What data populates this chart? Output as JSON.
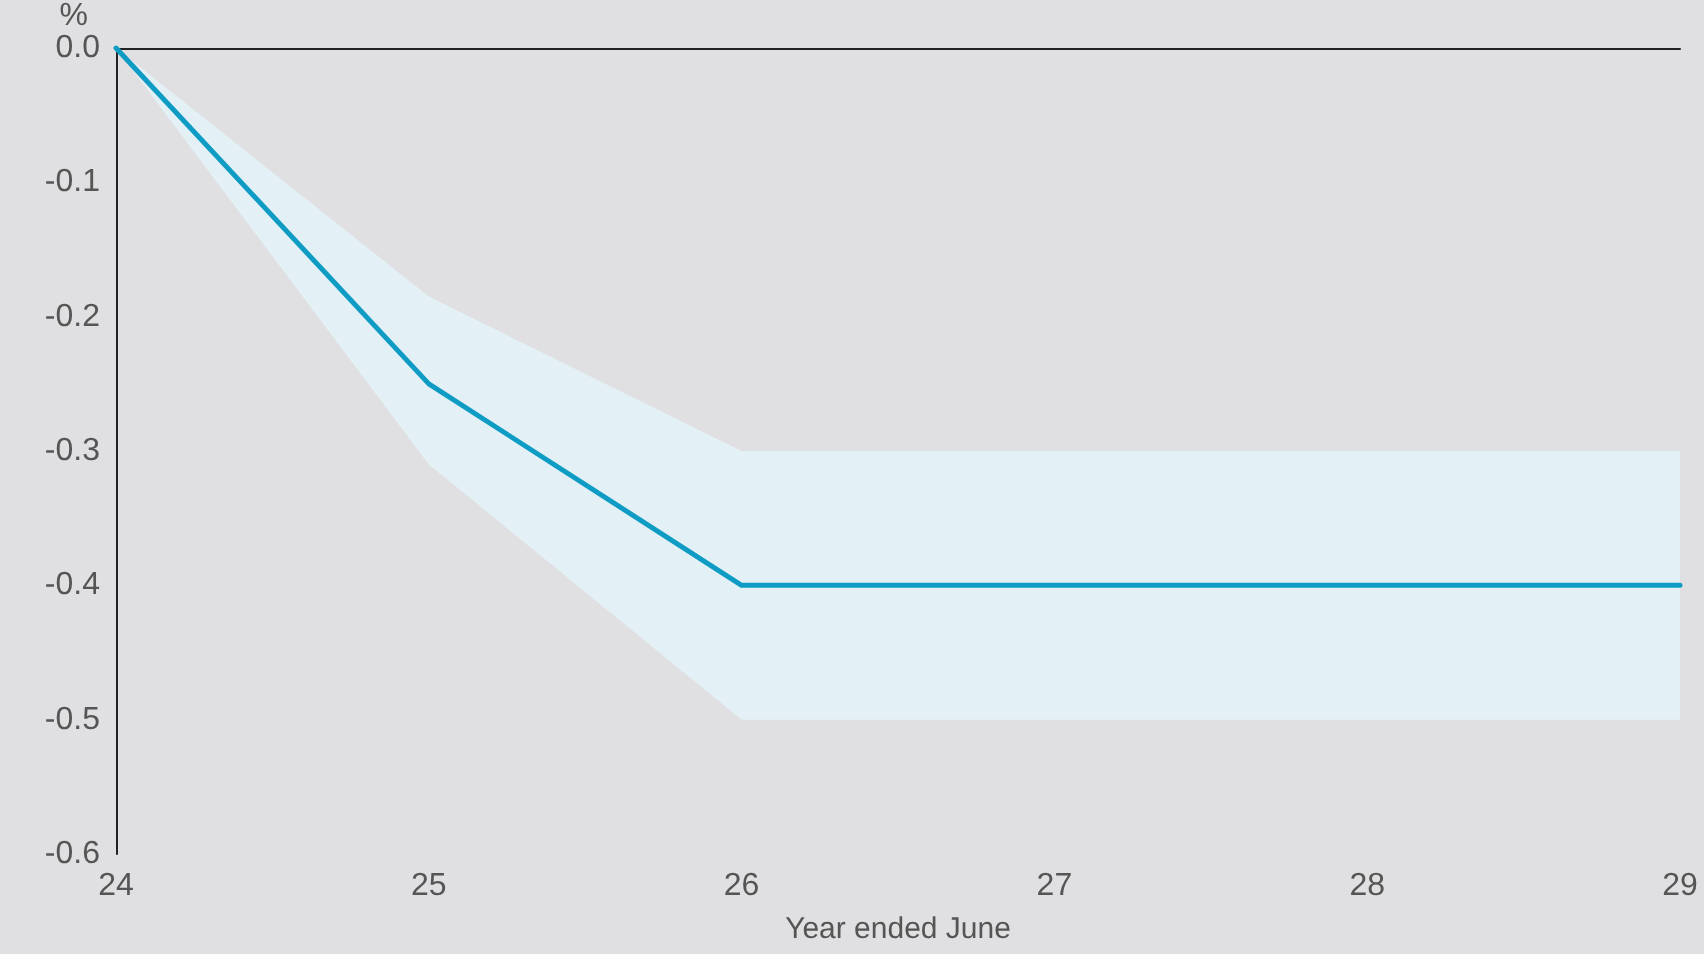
{
  "chart_data": {
    "type": "line",
    "ylabel": "%",
    "xlabel": "Year ended June",
    "x": [
      24,
      25,
      26,
      27,
      28,
      29
    ],
    "series": [
      {
        "color": "#0f9cc4",
        "values": [
          0,
          -0.25,
          -0.4,
          -0.4,
          -0.4,
          -0.4
        ],
        "lower": [
          0,
          -0.31,
          -0.5,
          -0.5,
          -0.5,
          -0.5
        ],
        "upper": [
          0,
          -0.185,
          -0.3,
          -0.3,
          -0.3,
          -0.3
        ]
      }
    ],
    "xlim": [
      24,
      29
    ],
    "xticks": [
      24,
      25,
      26,
      27,
      28,
      29
    ],
    "ylim": [
      -0.6,
      0
    ],
    "yticks": [
      {
        "value": 0,
        "label": "0.0"
      },
      -0.1,
      -0.2,
      -0.3,
      -0.4,
      -0.5,
      -0.6
    ],
    "grid": false,
    "marker": "none",
    "line_style": "solid"
  }
}
